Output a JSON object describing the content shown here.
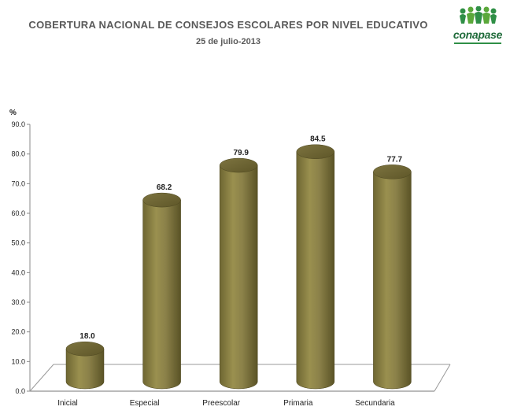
{
  "header": {
    "title": "COBERTURA  NACIONAL DE CONSEJOS  ESCOLARES POR NIVEL EDUCATIVO",
    "subtitle": "25 de julio-2013"
  },
  "logo": {
    "text": "conapase",
    "colors": {
      "green": "#2f8f46",
      "dark_green": "#1f6b3a"
    }
  },
  "chart_data": {
    "type": "bar",
    "title": "COBERTURA  NACIONAL DE CONSEJOS  ESCOLARES POR NIVEL EDUCATIVO",
    "subtitle": "25 de julio-2013",
    "xlabel": "",
    "ylabel": "%",
    "ylim": [
      0,
      90
    ],
    "yticks": [
      "0.0",
      "10.0",
      "20.0",
      "30.0",
      "40.0",
      "50.0",
      "60.0",
      "70.0",
      "80.0",
      "90.0"
    ],
    "categories": [
      "Inicial",
      "Especial",
      "Preescolar",
      "Primaria",
      "Secundaria"
    ],
    "values": [
      18.0,
      68.2,
      79.9,
      84.5,
      77.7
    ],
    "value_labels": [
      "18.0",
      "68.2",
      "79.9",
      "84.5",
      "77.7"
    ],
    "bar_color": "#8b8149",
    "grid": false,
    "style": "3d-cylinder"
  }
}
